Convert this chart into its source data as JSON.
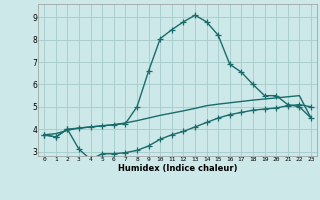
{
  "title": "",
  "xlabel": "Humidex (Indice chaleur)",
  "ylabel": "",
  "bg_color": "#cce8e8",
  "grid_color": "#aacece",
  "line_color": "#1a6b6b",
  "xlim": [
    -0.5,
    23.5
  ],
  "ylim": [
    2.8,
    9.6
  ],
  "yticks": [
    3,
    4,
    5,
    6,
    7,
    8,
    9
  ],
  "xticks": [
    0,
    1,
    2,
    3,
    4,
    5,
    6,
    7,
    8,
    9,
    10,
    11,
    12,
    13,
    14,
    15,
    16,
    17,
    18,
    19,
    20,
    21,
    22,
    23
  ],
  "curve1_x": [
    0,
    1,
    2,
    3,
    4,
    5,
    6,
    7,
    8,
    9,
    10,
    11,
    12,
    13,
    14,
    15,
    16,
    17,
    18,
    19,
    20,
    21,
    22,
    23
  ],
  "curve1_y": [
    3.75,
    3.65,
    4.0,
    4.05,
    4.1,
    4.15,
    4.2,
    4.25,
    5.0,
    6.6,
    8.05,
    8.45,
    8.8,
    9.1,
    8.8,
    8.2,
    6.9,
    6.55,
    6.0,
    5.5,
    5.5,
    5.1,
    5.0,
    4.5
  ],
  "curve2_x": [
    0,
    1,
    2,
    3,
    4,
    5,
    6,
    7,
    8,
    9,
    10,
    11,
    12,
    13,
    14,
    15,
    16,
    17,
    18,
    19,
    20,
    21,
    22,
    23
  ],
  "curve2_y": [
    3.75,
    3.65,
    4.0,
    3.1,
    2.65,
    2.9,
    2.9,
    2.95,
    3.05,
    3.25,
    3.55,
    3.75,
    3.9,
    4.1,
    4.3,
    4.5,
    4.65,
    4.75,
    4.85,
    4.9,
    4.95,
    5.05,
    5.1,
    5.0
  ],
  "curve3_x": [
    0,
    1,
    2,
    3,
    4,
    5,
    6,
    7,
    8,
    9,
    10,
    11,
    12,
    13,
    14,
    15,
    16,
    17,
    18,
    19,
    20,
    21,
    22,
    23
  ],
  "curve3_y": [
    3.75,
    3.8,
    3.95,
    4.05,
    4.1,
    4.15,
    4.2,
    4.28,
    4.38,
    4.5,
    4.62,
    4.72,
    4.82,
    4.93,
    5.05,
    5.12,
    5.18,
    5.24,
    5.3,
    5.35,
    5.4,
    5.45,
    5.5,
    4.5
  ],
  "marker_size": 3,
  "line_width": 1.0
}
